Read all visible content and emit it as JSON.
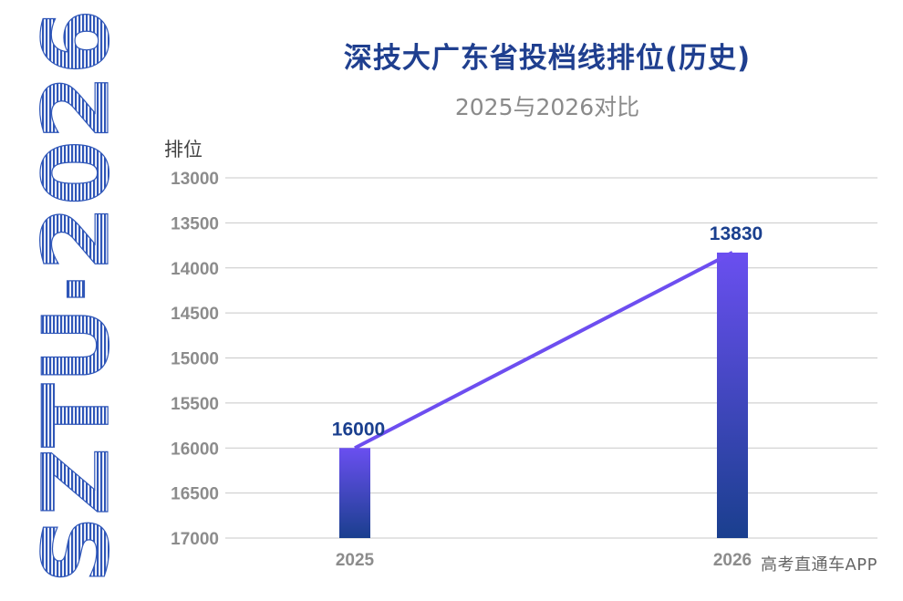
{
  "logo_text": "SZTU·2026",
  "title": "深技大广东省投档线排位(历史)",
  "subtitle": "2025与2026对比",
  "watermark": "高考直通车APP",
  "colors": {
    "title": "#1f3f8f",
    "line": "#6d4ef0",
    "bar_top": "#6a4ff0",
    "bar_bottom": "#1a3f8e",
    "label": "#1a3f8e",
    "grid": "#c8c8c8",
    "tick": "#8c8c8c"
  },
  "chart_data": {
    "type": "bar",
    "ylabel": "排位",
    "categories": [
      "2025",
      "2026"
    ],
    "values": [
      16000,
      13830
    ],
    "data_labels": [
      "16000",
      "13830"
    ],
    "overlay": "line",
    "ylim": [
      17000,
      13000
    ],
    "y_inverted": true,
    "yticks": [
      "13000",
      "13500",
      "14000",
      "14500",
      "15000",
      "15500",
      "16000",
      "16500",
      "17000"
    ],
    "grid": true
  }
}
